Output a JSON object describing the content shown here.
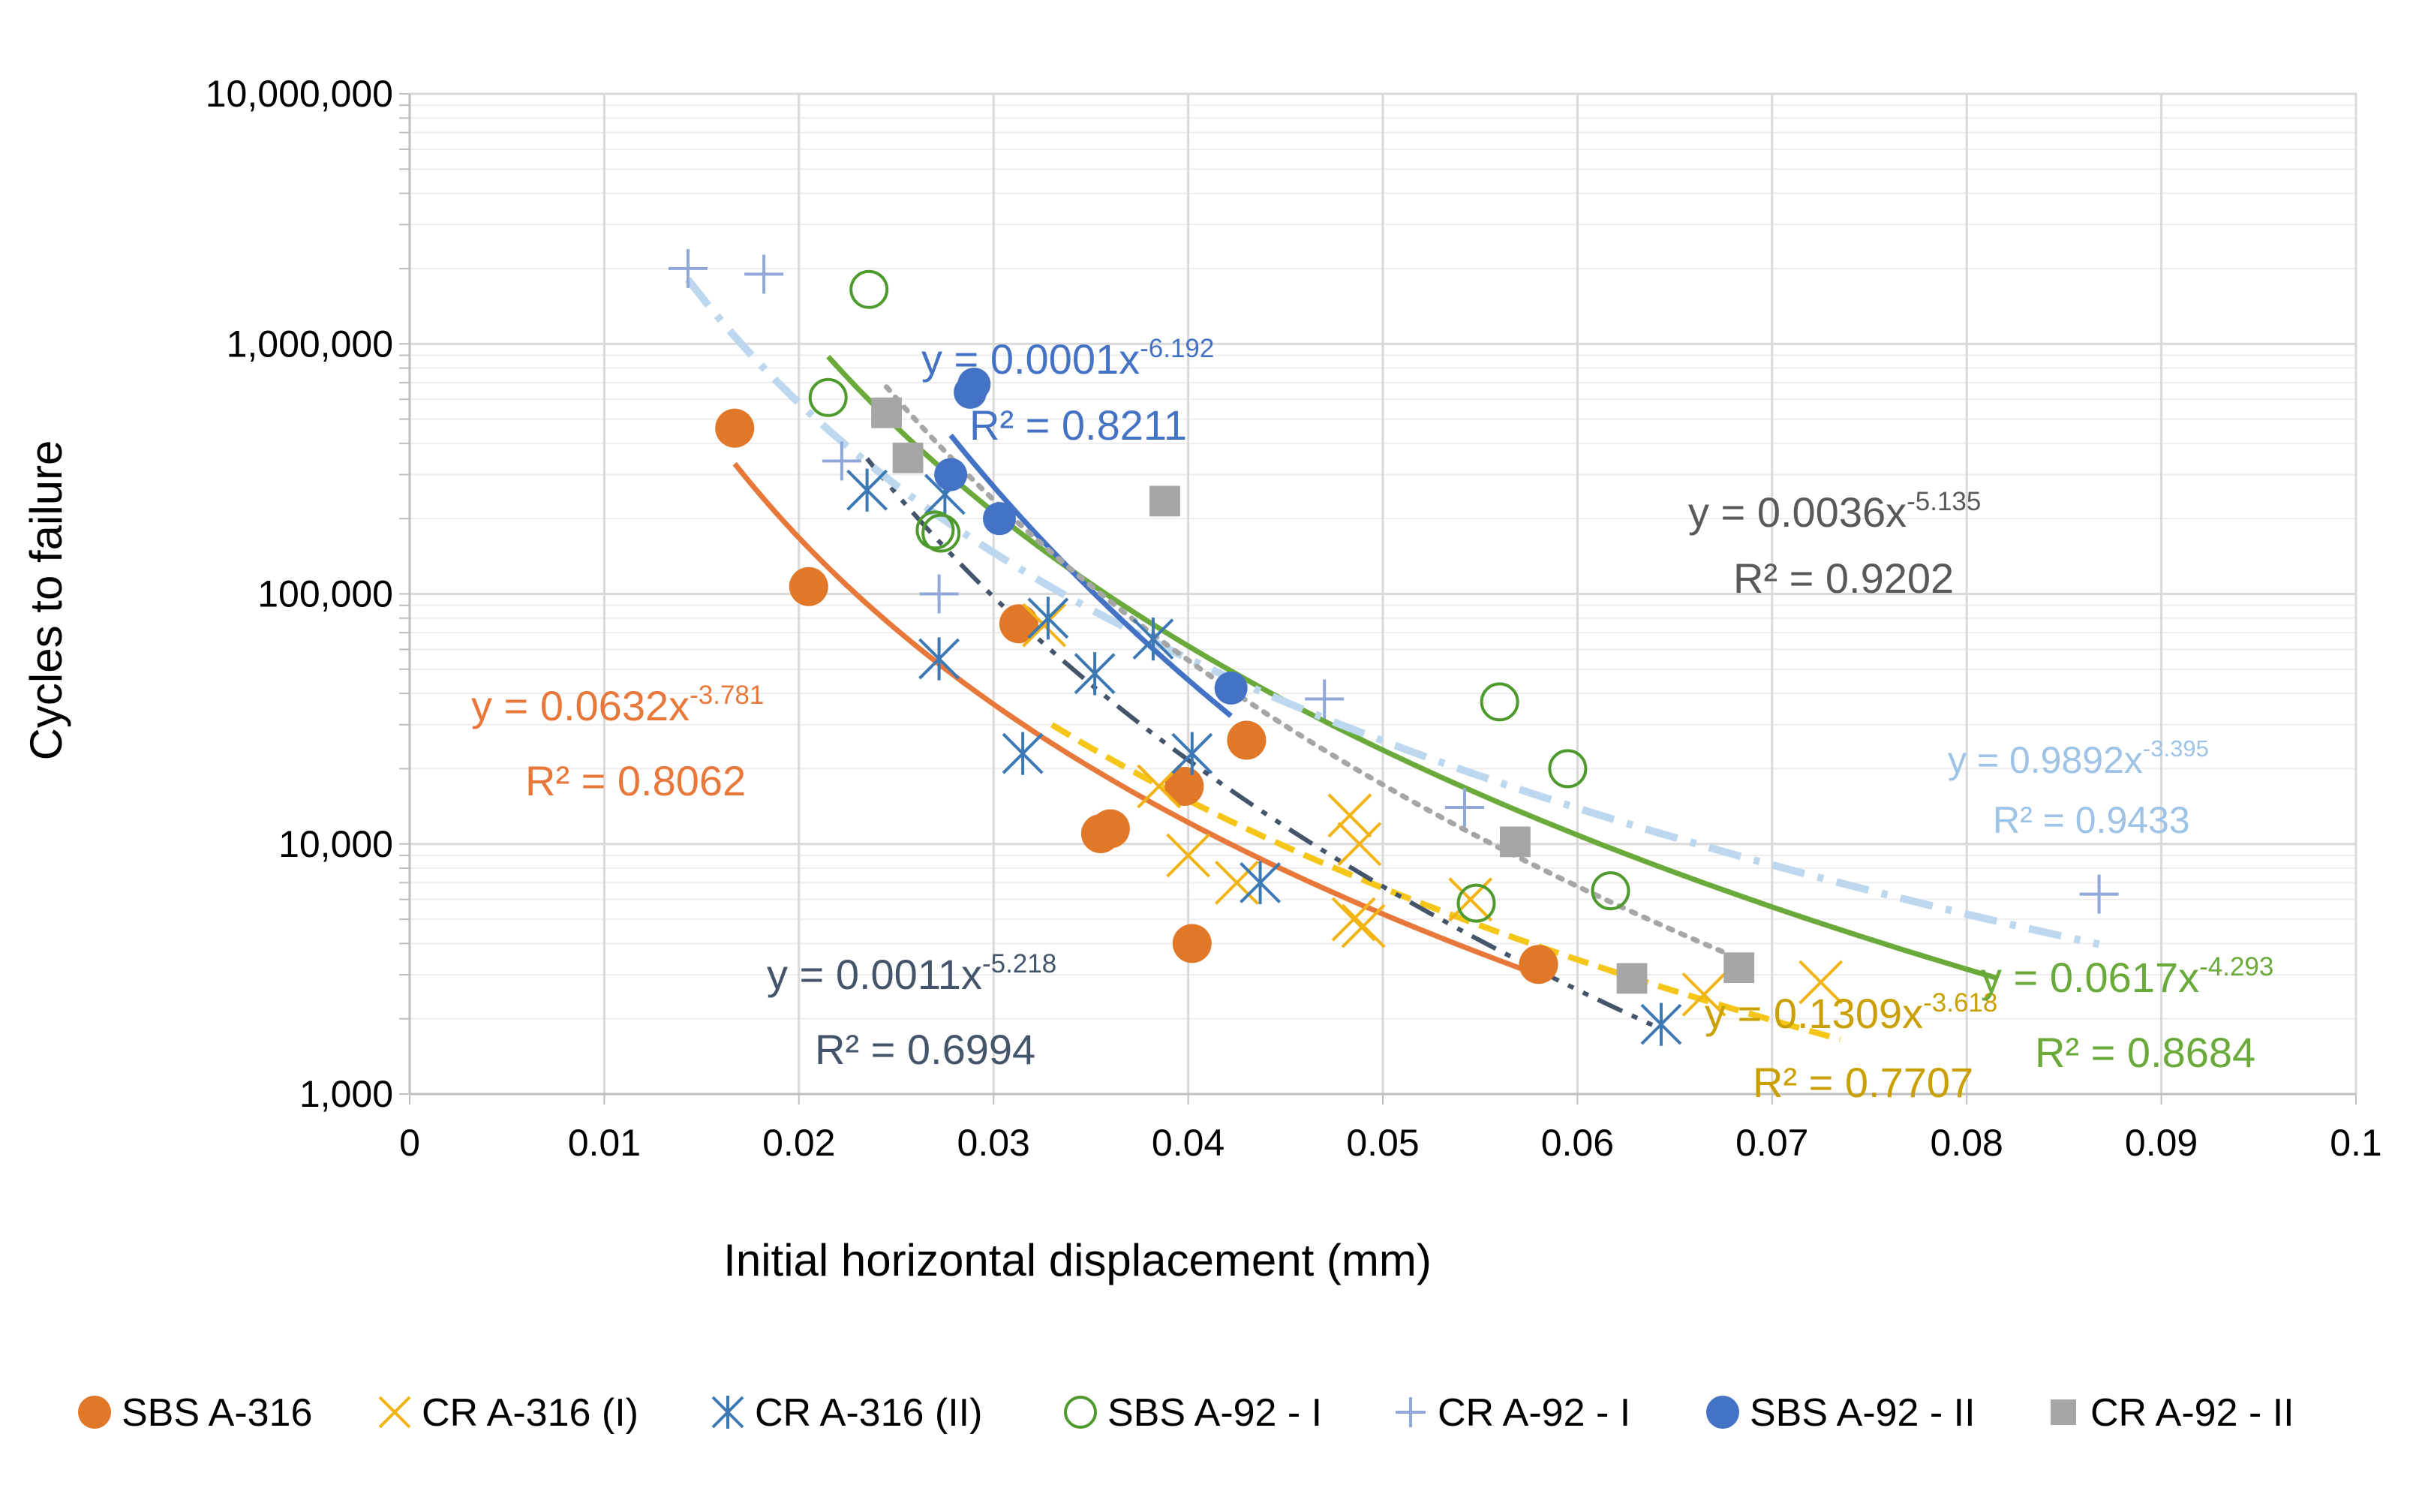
{
  "chart_data": {
    "type": "scatter",
    "title": "",
    "xlabel": "Initial horizontal displacement (mm)",
    "ylabel": "Cycles to failure",
    "xlim": [
      0,
      0.1
    ],
    "ylim": [
      1000,
      10000000
    ],
    "yscale": "log",
    "grid": true,
    "legend_position": "bottom",
    "x_ticks": [
      "0",
      "0.01",
      "0.02",
      "0.03",
      "0.04",
      "0.05",
      "0.06",
      "0.07",
      "0.08",
      "0.09",
      "0.1"
    ],
    "y_ticks": [
      "1,000",
      "10,000",
      "100,000",
      "1,000,000",
      "10,000,000"
    ],
    "series": [
      {
        "name": "SBS A-316",
        "marker": "filled-circle",
        "color": "#E07828",
        "points": [
          [
            0.0167,
            460000
          ],
          [
            0.0205,
            107000
          ],
          [
            0.0313,
            76000
          ],
          [
            0.0355,
            11000
          ],
          [
            0.036,
            11500
          ],
          [
            0.0398,
            17000
          ],
          [
            0.0402,
            4000
          ],
          [
            0.043,
            26000
          ],
          [
            0.058,
            3300
          ]
        ],
        "trend": {
          "a": 0.0632,
          "b": -3.781,
          "xrange": [
            0.0167,
            0.058
          ],
          "style": "solid",
          "color": "#E8773A"
        },
        "equation": "y = 0.0632x",
        "exponent": "-3.781",
        "r2": "R² = 0.8062",
        "label_color": "#E8773A"
      },
      {
        "name": "CR A-316 (I)",
        "marker": "x",
        "color": "#F2B314",
        "points": [
          [
            0.0326,
            75000
          ],
          [
            0.0385,
            17000
          ],
          [
            0.04,
            9000
          ],
          [
            0.0425,
            7000
          ],
          [
            0.0483,
            13000
          ],
          [
            0.0488,
            10000
          ],
          [
            0.0485,
            5000
          ],
          [
            0.049,
            4700
          ],
          [
            0.0545,
            6000
          ],
          [
            0.0665,
            2500
          ],
          [
            0.0725,
            2800
          ]
        ],
        "trend": {
          "a": 0.1309,
          "b": -3.618,
          "xrange": [
            0.033,
            0.0735
          ],
          "style": "dash",
          "color": "#F5C518"
        },
        "equation": "y = 0.1309x",
        "exponent": "-3.618",
        "r2": "R² = 0.7707",
        "label_color": "#C9A000"
      },
      {
        "name": "CR A-316 (II)",
        "marker": "asterisk",
        "color": "#3C78B4",
        "points": [
          [
            0.0235,
            260000
          ],
          [
            0.0272,
            55000
          ],
          [
            0.0275,
            250000
          ],
          [
            0.0315,
            23000
          ],
          [
            0.0328,
            80000
          ],
          [
            0.0352,
            48000
          ],
          [
            0.0382,
            66000
          ],
          [
            0.0402,
            23000
          ],
          [
            0.0437,
            7000
          ],
          [
            0.0643,
            1900
          ]
        ],
        "trend": {
          "a": 0.0011,
          "b": -5.218,
          "xrange": [
            0.0235,
            0.064
          ],
          "style": "dashdotdot",
          "color": "#44546A"
        },
        "equation": "y = 0.0011x",
        "exponent": "-5.218",
        "r2": "R² = 0.6994",
        "label_color": "#44546A"
      },
      {
        "name": "SBS A-92 - I",
        "marker": "open-circle",
        "color": "#4E9A2C",
        "points": [
          [
            0.0215,
            610000
          ],
          [
            0.0236,
            1650000
          ],
          [
            0.027,
            180000
          ],
          [
            0.0273,
            175000
          ],
          [
            0.0548,
            5800
          ],
          [
            0.056,
            37000
          ],
          [
            0.0595,
            20000
          ],
          [
            0.0617,
            6500
          ]
        ],
        "trend": {
          "a": 0.0617,
          "b": -4.293,
          "xrange": [
            0.0215,
            0.0815
          ],
          "style": "solid",
          "color": "#6AAA3A"
        },
        "equation": "y = 0.0617x",
        "exponent": "-4.293",
        "r2": "R² = 0.8684",
        "label_color": "#6AAA3A"
      },
      {
        "name": "CR A-92 - I",
        "marker": "plus",
        "color": "#8FA8D8",
        "points": [
          [
            0.0143,
            2000000
          ],
          [
            0.0182,
            1900000
          ],
          [
            0.0222,
            340000
          ],
          [
            0.0272,
            100000
          ],
          [
            0.047,
            38000
          ],
          [
            0.0542,
            14000
          ],
          [
            0.0868,
            6300
          ]
        ],
        "trend": {
          "a": 0.9892,
          "b": -3.395,
          "xrange": [
            0.0143,
            0.0868
          ],
          "style": "dashdot",
          "color": "#BDD7EE"
        },
        "equation": "y = 0.9892x",
        "exponent": "-3.395",
        "r2": "R² = 0.9433",
        "label_color": "#9DC3E6"
      },
      {
        "name": "SBS A-92 - II",
        "marker": "filled-circle",
        "color": "#4472C4",
        "points": [
          [
            0.0278,
            300000
          ],
          [
            0.0288,
            640000
          ],
          [
            0.029,
            690000
          ],
          [
            0.0303,
            200000
          ],
          [
            0.0422,
            42000
          ]
        ],
        "trend": {
          "a": 0.0001,
          "b": -6.192,
          "xrange": [
            0.0278,
            0.0422
          ],
          "style": "solid",
          "color": "#4472C4"
        },
        "equation": "y = 0.0001x",
        "exponent": "-6.192",
        "r2": "R² = 0.8211",
        "label_color": "#4472C4"
      },
      {
        "name": "CR A-92 - II",
        "marker": "square",
        "color": "#A6A6A6",
        "points": [
          [
            0.0245,
            530000
          ],
          [
            0.0256,
            350000
          ],
          [
            0.0388,
            235000
          ],
          [
            0.0568,
            10200
          ],
          [
            0.0628,
            2900
          ],
          [
            0.0683,
            3200
          ]
        ],
        "trend": {
          "a": 0.0036,
          "b": -5.135,
          "xrange": [
            0.0245,
            0.0683
          ],
          "style": "dot",
          "color": "#A6A6A6"
        },
        "equation": "y = 0.0036x",
        "exponent": "-5.135",
        "r2": "R² = 0.9202",
        "label_color": "#595959"
      }
    ]
  }
}
